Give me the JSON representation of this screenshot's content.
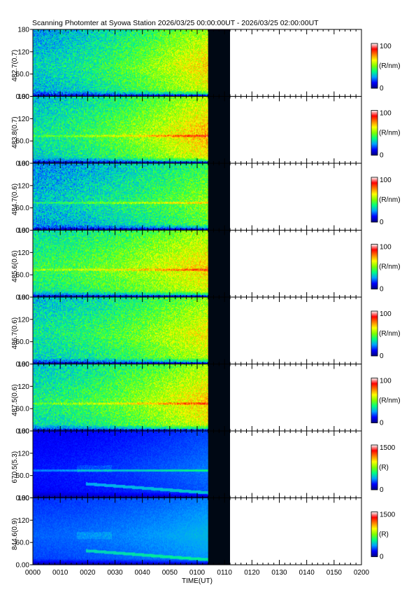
{
  "title": "Scanning Photomter at Syowa Station 2026/03/25 00:00:00UT - 2026/03/25 02:00:00UT",
  "chart_data": {
    "type": "heatmap",
    "xlabel": "TIME(UT)",
    "x_ticks": [
      "0000",
      "0010",
      "0020",
      "0030",
      "0040",
      "0050",
      "0100",
      "0110",
      "0120",
      "0130",
      "0140",
      "0150",
      "0200"
    ],
    "x_range_minutes": [
      0,
      120
    ],
    "data_end_minutes": 64,
    "dark_band_minutes": [
      64,
      72
    ],
    "y_ticks": [
      "0.00",
      "60.0",
      "120",
      "180"
    ],
    "y_range": [
      0,
      180
    ],
    "colormap": [
      "#000080",
      "#0000ff",
      "#00a0ff",
      "#00ff80",
      "#80ff00",
      "#ffff00",
      "#ff8000",
      "#ff0000",
      "#ffffff"
    ],
    "panels": [
      {
        "label": "482.7(0.7)",
        "unit": "(R/nm)",
        "cmax": "100",
        "cmin": "0",
        "texture": "noise",
        "base": 0.32,
        "ramp": 0.35,
        "bright_y": [],
        "dark_bottom": true
      },
      {
        "label": "483.8(0.7)",
        "unit": "(R/nm)",
        "cmax": "100",
        "cmin": "0",
        "texture": "noise",
        "base": 0.36,
        "ramp": 0.35,
        "bright_y": [
          75
        ],
        "dark_bottom": true
      },
      {
        "label": "484.7(0.6)",
        "unit": "(R/nm)",
        "cmax": "100",
        "cmin": "0",
        "texture": "noise",
        "base": 0.3,
        "ramp": 0.22,
        "bright_y": [
          75
        ],
        "dark_bottom": true
      },
      {
        "label": "485.6(0.6)",
        "unit": "(R/nm)",
        "cmax": "100",
        "cmin": "0",
        "texture": "noise",
        "base": 0.42,
        "ramp": 0.25,
        "bright_y": [
          75
        ],
        "dark_bottom": true
      },
      {
        "label": "486.7(0.6)",
        "unit": "(R/nm)",
        "cmax": "100",
        "cmin": "0",
        "texture": "noise",
        "base": 0.36,
        "ramp": 0.28,
        "bright_y": [],
        "dark_bottom": true
      },
      {
        "label": "487.5(0.6)",
        "unit": "(R/nm)",
        "cmax": "100",
        "cmin": "0",
        "texture": "noise",
        "base": 0.38,
        "ramp": 0.3,
        "bright_y": [
          75
        ],
        "dark_bottom": true
      },
      {
        "label": "670.5(5.3)",
        "unit": "(R)",
        "cmax": "1500",
        "cmin": "0",
        "texture": "smooth",
        "base": 0.14,
        "ramp": 0.08,
        "bright_y": [
          75
        ],
        "dark_bottom": true
      },
      {
        "label": "844.6(0.9)",
        "unit": "(R)",
        "cmax": "1500",
        "cmin": "0",
        "texture": "smooth",
        "base": 0.2,
        "ramp": 0.08,
        "bright_y": [],
        "dark_bottom": true
      }
    ]
  }
}
